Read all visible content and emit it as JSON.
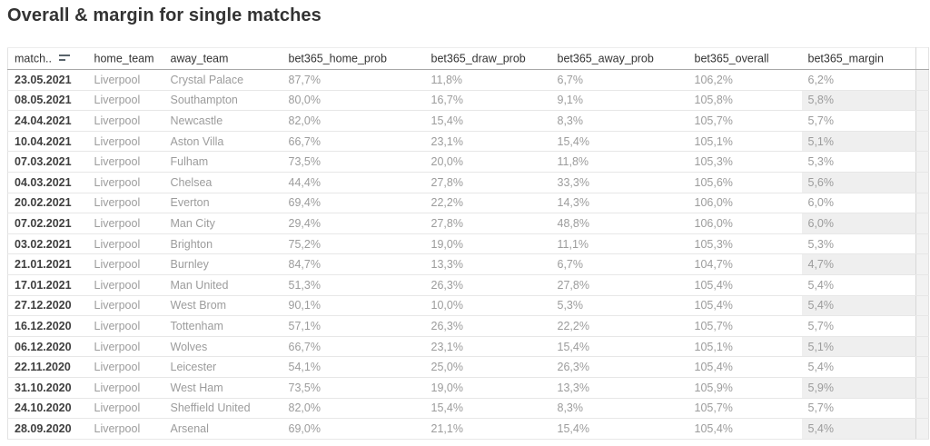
{
  "title": "Overall & margin for single matches",
  "chart_data": {
    "type": "table",
    "title": "Overall & margin for single matches",
    "columns": [
      "match_date",
      "home_team",
      "away_team",
      "bet365_home_prob",
      "bet365_draw_prob",
      "bet365_away_prob",
      "bet365_overall",
      "bet365_margin"
    ],
    "column_labels": [
      "match..",
      "home_team",
      "away_team",
      "bet365_home_prob",
      "bet365_draw_prob",
      "bet365_away_prob",
      "bet365_overall",
      "bet365_margin"
    ],
    "sort": {
      "column": "match_date",
      "direction": "descending"
    },
    "rows": [
      [
        "23.05.2021",
        "Liverpool",
        "Crystal Palace",
        "87,7%",
        "11,8%",
        "6,7%",
        "106,2%",
        "6,2%"
      ],
      [
        "08.05.2021",
        "Liverpool",
        "Southampton",
        "80,0%",
        "16,7%",
        "9,1%",
        "105,8%",
        "5,8%"
      ],
      [
        "24.04.2021",
        "Liverpool",
        "Newcastle",
        "82,0%",
        "15,4%",
        "8,3%",
        "105,7%",
        "5,7%"
      ],
      [
        "10.04.2021",
        "Liverpool",
        "Aston Villa",
        "66,7%",
        "23,1%",
        "15,4%",
        "105,1%",
        "5,1%"
      ],
      [
        "07.03.2021",
        "Liverpool",
        "Fulham",
        "73,5%",
        "20,0%",
        "11,8%",
        "105,3%",
        "5,3%"
      ],
      [
        "04.03.2021",
        "Liverpool",
        "Chelsea",
        "44,4%",
        "27,8%",
        "33,3%",
        "105,6%",
        "5,6%"
      ],
      [
        "20.02.2021",
        "Liverpool",
        "Everton",
        "69,4%",
        "22,2%",
        "14,3%",
        "106,0%",
        "6,0%"
      ],
      [
        "07.02.2021",
        "Liverpool",
        "Man City",
        "29,4%",
        "27,8%",
        "48,8%",
        "106,0%",
        "6,0%"
      ],
      [
        "03.02.2021",
        "Liverpool",
        "Brighton",
        "75,2%",
        "19,0%",
        "11,1%",
        "105,3%",
        "5,3%"
      ],
      [
        "21.01.2021",
        "Liverpool",
        "Burnley",
        "84,7%",
        "13,3%",
        "6,7%",
        "104,7%",
        "4,7%"
      ],
      [
        "17.01.2021",
        "Liverpool",
        "Man United",
        "51,3%",
        "26,3%",
        "27,8%",
        "105,4%",
        "5,4%"
      ],
      [
        "27.12.2020",
        "Liverpool",
        "West Brom",
        "90,1%",
        "10,0%",
        "5,3%",
        "105,4%",
        "5,4%"
      ],
      [
        "16.12.2020",
        "Liverpool",
        "Tottenham",
        "57,1%",
        "26,3%",
        "22,2%",
        "105,7%",
        "5,7%"
      ],
      [
        "06.12.2020",
        "Liverpool",
        "Wolves",
        "66,7%",
        "23,1%",
        "15,4%",
        "105,1%",
        "5,1%"
      ],
      [
        "22.11.2020",
        "Liverpool",
        "Leicester",
        "54,1%",
        "25,0%",
        "26,3%",
        "105,4%",
        "5,4%"
      ],
      [
        "31.10.2020",
        "Liverpool",
        "West Ham",
        "73,5%",
        "19,0%",
        "13,3%",
        "105,9%",
        "5,9%"
      ],
      [
        "24.10.2020",
        "Liverpool",
        "Sheffield United",
        "82,0%",
        "15,4%",
        "8,3%",
        "105,7%",
        "5,7%"
      ],
      [
        "28.09.2020",
        "Liverpool",
        "Arsenal",
        "69,0%",
        "21,1%",
        "15,4%",
        "105,4%",
        "5,4%"
      ]
    ]
  },
  "icons": {
    "sort": "sort-descending-icon"
  },
  "colors": {
    "title_text": "#333333",
    "header_text": "#333333",
    "date_text": "#3f3f3f",
    "cell_text": "#9c9c9c",
    "row_line": "#e7e7e7",
    "header_line": "#a8a8a8",
    "margin_band": "#efefef",
    "right_gutter": "#f2f2f2"
  }
}
